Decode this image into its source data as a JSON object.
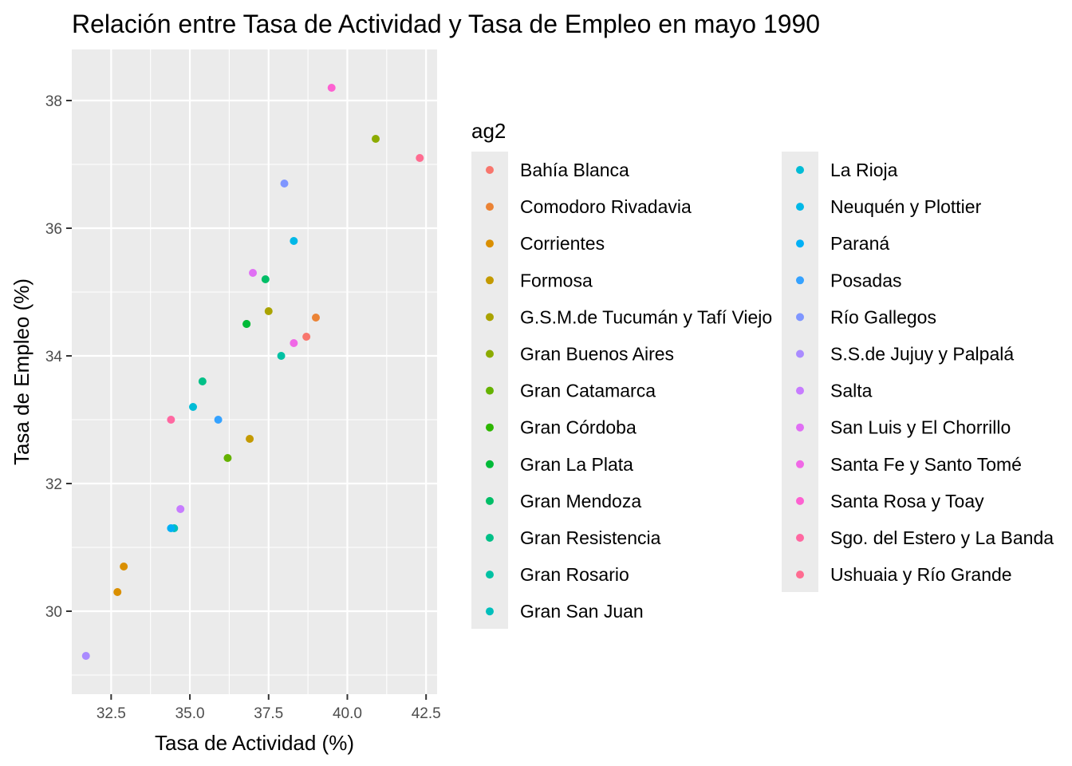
{
  "chart_data": {
    "type": "scatter",
    "title": "Relación entre Tasa de Actividad y Tasa de Empleo en mayo 1990",
    "xlabel": "Tasa de Actividad (%)",
    "ylabel": "Tasa de Empleo (%)",
    "xlim": [
      31.25,
      42.85
    ],
    "ylim": [
      28.7,
      38.8
    ],
    "xticks": [
      32.5,
      35.0,
      37.5,
      40.0,
      42.5
    ],
    "xtick_labels": [
      "32.5",
      "35.0",
      "37.5",
      "40.0",
      "42.5"
    ],
    "yticks": [
      30,
      32,
      34,
      36,
      38
    ],
    "ytick_labels": [
      "30",
      "32",
      "34",
      "36",
      "38"
    ],
    "grid": true,
    "legend_title": "ag2",
    "legend_position": "right",
    "series": [
      {
        "name": "Bahía Blanca",
        "color": "#F8766D",
        "points": [
          [
            38.7,
            34.3
          ]
        ]
      },
      {
        "name": "Comodoro Rivadavia",
        "color": "#EB8335",
        "points": [
          [
            39.0,
            34.6
          ]
        ]
      },
      {
        "name": "Corrientes",
        "color": "#DA8F00",
        "points": [
          [
            32.9,
            30.7
          ],
          [
            32.7,
            30.3
          ]
        ]
      },
      {
        "name": "Formosa",
        "color": "#C49A00",
        "points": [
          [
            36.9,
            32.7
          ]
        ]
      },
      {
        "name": "G.S.M.de Tucumán y Tafí Viejo",
        "color": "#AAA300",
        "points": [
          [
            37.5,
            34.7
          ]
        ]
      },
      {
        "name": "Gran Buenos Aires",
        "color": "#8CAB00",
        "points": [
          [
            40.9,
            37.4
          ]
        ]
      },
      {
        "name": "Gran Catamarca",
        "color": "#65B200",
        "points": [
          [
            36.2,
            32.4
          ]
        ]
      },
      {
        "name": "Gran Córdoba",
        "color": "#2DB600",
        "points": [
          [
            36.8,
            34.5
          ]
        ]
      },
      {
        "name": "Gran La Plata",
        "color": "#00BA38",
        "points": [
          [
            36.8,
            34.5
          ]
        ]
      },
      {
        "name": "Gran Mendoza",
        "color": "#00BE67",
        "points": [
          [
            37.4,
            35.2
          ]
        ]
      },
      {
        "name": "Gran Resistencia",
        "color": "#00C087",
        "points": [
          [
            35.4,
            33.6
          ]
        ]
      },
      {
        "name": "Gran Rosario",
        "color": "#00C1A3",
        "points": [
          [
            37.9,
            34.0
          ]
        ]
      },
      {
        "name": "Gran San Juan",
        "color": "#00BFBC",
        "points": [
          [
            34.5,
            31.3
          ]
        ]
      },
      {
        "name": "La Rioja",
        "color": "#00BCD6",
        "points": [
          [
            35.1,
            33.2
          ]
        ]
      },
      {
        "name": "Neuquén y Plottier",
        "color": "#00B8E7",
        "points": [
          [
            38.3,
            35.8
          ]
        ]
      },
      {
        "name": "Paraná",
        "color": "#00B0F6",
        "points": [
          [
            34.4,
            31.3
          ]
        ]
      },
      {
        "name": "Posadas",
        "color": "#35A2FF",
        "points": [
          [
            35.9,
            33.0
          ]
        ]
      },
      {
        "name": "Río Gallegos",
        "color": "#7F96FF",
        "points": [
          [
            38.0,
            36.7
          ]
        ]
      },
      {
        "name": "S.S.de Jujuy y Palpalá",
        "color": "#AA8BFF",
        "points": [
          [
            31.7,
            29.3
          ]
        ]
      },
      {
        "name": "Salta",
        "color": "#C77CFF",
        "points": [
          [
            34.7,
            31.6
          ]
        ]
      },
      {
        "name": "San Luis y El Chorrillo",
        "color": "#E06FF4",
        "points": [
          [
            37.0,
            35.3
          ]
        ]
      },
      {
        "name": "Santa Fe y Santo Tomé",
        "color": "#F068E6",
        "points": [
          [
            38.3,
            34.2
          ]
        ]
      },
      {
        "name": "Santa Rosa y Toay",
        "color": "#FD61D1",
        "points": [
          [
            39.5,
            38.2
          ]
        ]
      },
      {
        "name": "Sgo. del Estero y La Banda",
        "color": "#FF68A1",
        "points": [
          [
            34.4,
            33.0
          ]
        ]
      },
      {
        "name": "Ushuaia y Río Grande",
        "color": "#FF6C91",
        "points": [
          [
            42.3,
            37.1
          ]
        ]
      }
    ]
  }
}
